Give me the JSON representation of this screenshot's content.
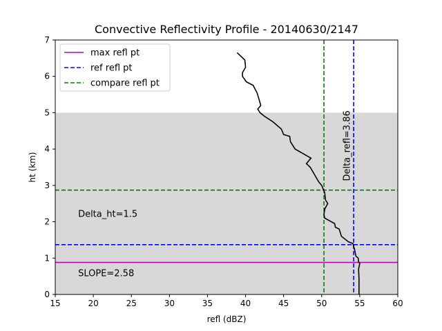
{
  "chart_data": {
    "type": "line",
    "title": "Convective Reflectivity Profile - 20140630/2147",
    "xlabel": "refl (dBZ)",
    "ylabel": "ht (km)",
    "xlim": [
      15,
      60
    ],
    "ylim": [
      0,
      7
    ],
    "xticks": [
      15,
      20,
      25,
      30,
      35,
      40,
      45,
      50,
      55,
      60
    ],
    "yticks": [
      0,
      1,
      2,
      3,
      4,
      5,
      6,
      7
    ],
    "grid": false,
    "legend_position": "top-left",
    "shaded_region": {
      "y_from": 0,
      "y_to": 5,
      "color": "#d8d8d8"
    },
    "profile": {
      "color": "#000000",
      "x": [
        54.9,
        54.9,
        54.85,
        55.0,
        54.85,
        54.8,
        54.5,
        54.3,
        54.1,
        53.5,
        52.6,
        52.3,
        51.8,
        51.7,
        50.4,
        50.3,
        50.4,
        50.8,
        50.5,
        50.4,
        50.0,
        49.6,
        48.5,
        48.0,
        48.6,
        46.5,
        45.9,
        45.8,
        45.0,
        44.7,
        43.6,
        42.5,
        41.9,
        41.6,
        42.0,
        41.8,
        41.5,
        41.0,
        40.1,
        39.6,
        39.6,
        40.0,
        39.9,
        38.9
      ],
      "y": [
        0.0,
        0.45,
        0.7,
        0.85,
        0.9,
        1.0,
        1.05,
        1.25,
        1.4,
        1.45,
        1.6,
        1.8,
        1.85,
        1.95,
        2.1,
        2.2,
        2.35,
        2.5,
        2.6,
        2.8,
        3.0,
        3.1,
        3.5,
        3.6,
        3.75,
        4.0,
        4.2,
        4.35,
        4.4,
        4.55,
        4.75,
        4.9,
        5.0,
        5.1,
        5.2,
        5.35,
        5.55,
        5.75,
        5.85,
        6.0,
        6.1,
        6.25,
        6.45,
        6.65
      ]
    },
    "reference_lines": [
      {
        "name": "max refl pt",
        "orientation": "horizontal",
        "value": 0.88,
        "color": "#bf00bf",
        "style": "solid"
      },
      {
        "name": "ref refl pt",
        "orientation": "horizontal",
        "value": 1.37,
        "color": "#0000ff",
        "style": "dashed"
      },
      {
        "name": "compare refl pt",
        "orientation": "horizontal",
        "value": 2.87,
        "color": "#008000",
        "style": "dashed"
      },
      {
        "orientation": "vertical",
        "value": 54.2,
        "color": "#0000ff",
        "style": "dashed"
      },
      {
        "orientation": "vertical",
        "value": 50.3,
        "color": "#008000",
        "style": "dashed"
      }
    ],
    "legend": [
      {
        "label": "max refl pt",
        "color": "#bf00bf",
        "style": "solid"
      },
      {
        "label": "ref refl pt",
        "color": "#0000ff",
        "style": "dashed"
      },
      {
        "label": "compare refl pt",
        "color": "#008000",
        "style": "dashed"
      }
    ],
    "annotations": [
      {
        "text": "Delta_ht=1.5",
        "x": 18,
        "y": 2.13,
        "rotation": 0
      },
      {
        "text": "SLOPE=2.58",
        "x": 18,
        "y": 0.5,
        "rotation": 0
      },
      {
        "text": "Delta_refl=3.86",
        "x": 53.7,
        "y": 3.12,
        "rotation": -90
      }
    ]
  }
}
